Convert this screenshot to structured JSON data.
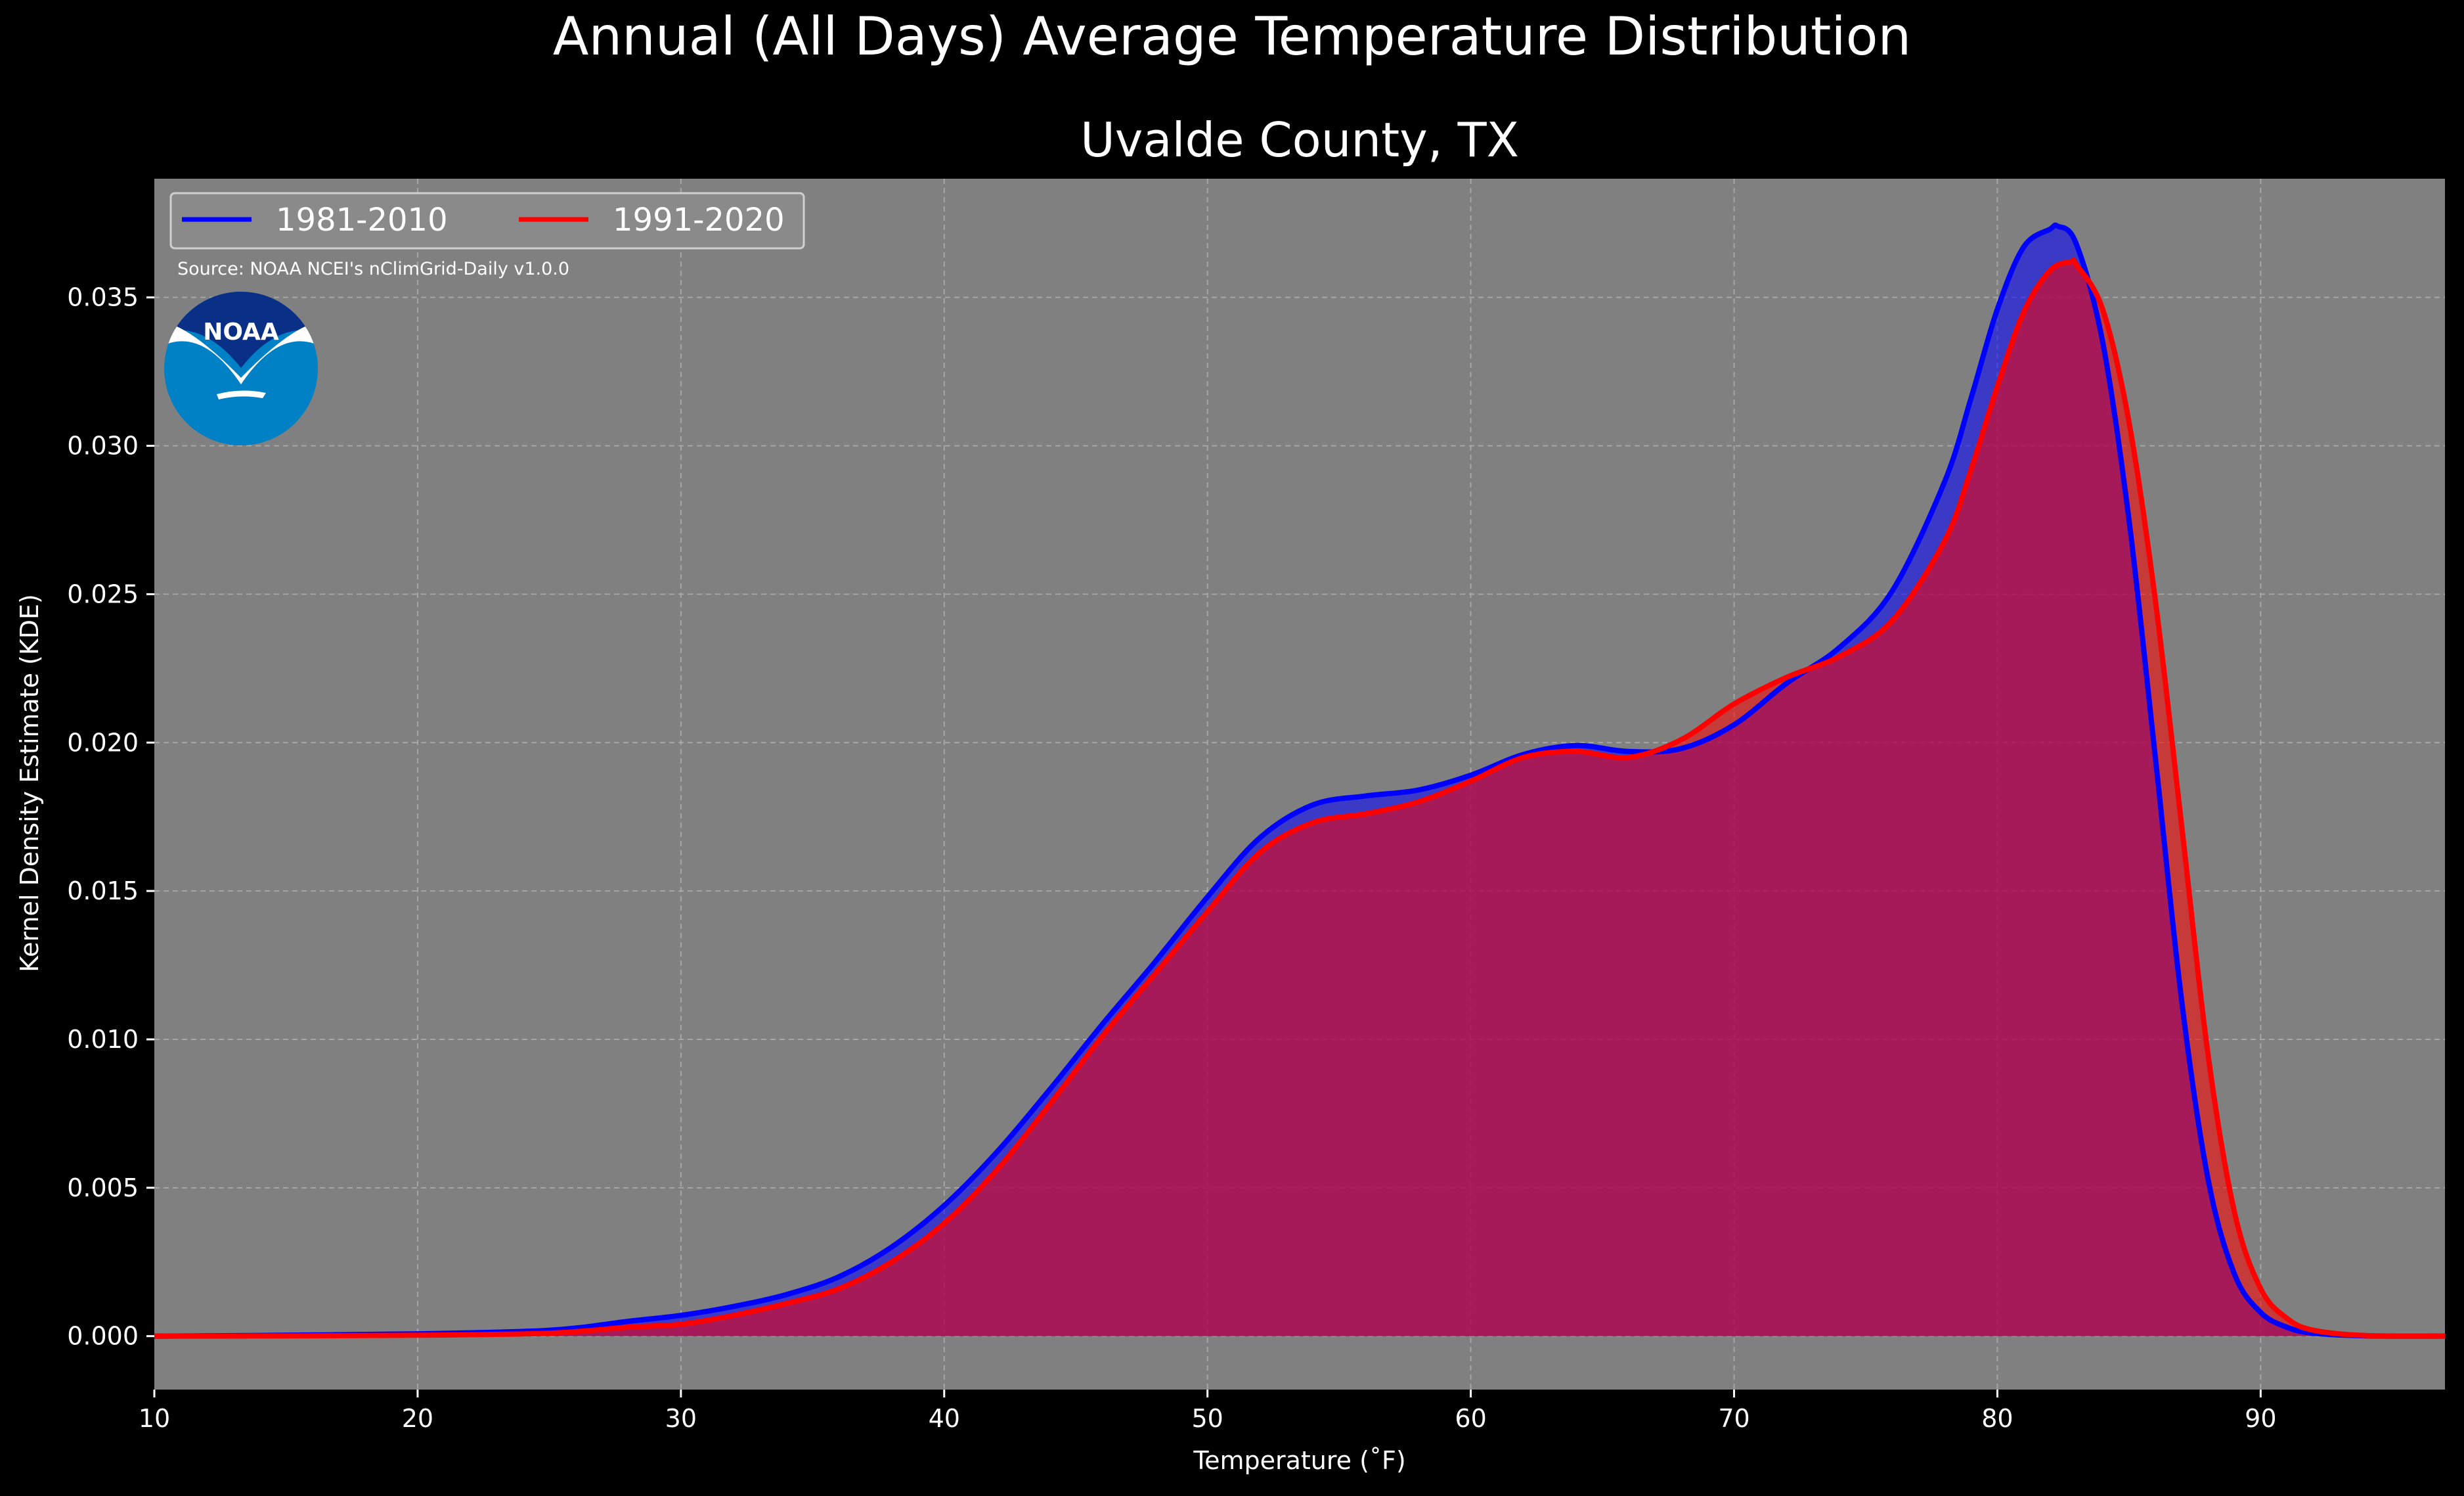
{
  "chart_data": {
    "type": "area",
    "suptitle": "Annual (All Days) Average Temperature Distribution",
    "title": "Uvalde County, TX",
    "xlabel": "Temperature ($^\\circ$F)",
    "xlabel_display": "Temperature (˚F)",
    "ylabel": "Kernel Density Estimate (KDE)",
    "xlim": [
      10,
      97
    ],
    "ylim": [
      -0.0018,
      0.039
    ],
    "xticks": [
      10,
      20,
      30,
      40,
      50,
      60,
      70,
      80,
      90
    ],
    "xtick_labels": [
      "10",
      "20",
      "30",
      "40",
      "50",
      "60",
      "70",
      "80",
      "90"
    ],
    "yticks": [
      0.0,
      0.005,
      0.01,
      0.015,
      0.02,
      0.025,
      0.03,
      0.035
    ],
    "ytick_labels": [
      "0.000",
      "0.005",
      "0.010",
      "0.015",
      "0.020",
      "0.025",
      "0.030",
      "0.035"
    ],
    "grid": true,
    "legend_position": "top-left",
    "source_note": "Source: NOAA NCEI's nClimGrid-Daily v1.0.0",
    "logo_text": "NOAA",
    "colors": {
      "figure_bg": "#000000",
      "axes_bg": "#808080",
      "grid": "#b0b0b0",
      "text": "#ffffff"
    },
    "series": [
      {
        "name": "1981-2010",
        "line_color": "#0000ff",
        "fill_color": "#3b3bc9",
        "x": [
          10,
          15,
          20,
          25,
          28,
          30,
          32,
          34,
          36,
          38,
          40,
          42,
          44,
          46,
          48,
          50,
          52,
          54,
          56,
          58,
          60,
          62,
          64,
          66,
          68,
          70,
          72,
          74,
          76,
          78,
          79,
          80,
          81,
          82,
          82.3,
          83,
          84,
          85,
          86,
          87,
          88,
          89,
          90,
          91,
          92,
          94,
          97
        ],
        "y": [
          0.0,
          3e-05,
          8e-05,
          0.0002,
          0.0005,
          0.0007,
          0.001,
          0.0014,
          0.002,
          0.003,
          0.0044,
          0.0062,
          0.0083,
          0.0105,
          0.0126,
          0.0148,
          0.0168,
          0.0179,
          0.0182,
          0.0184,
          0.0189,
          0.0196,
          0.0199,
          0.0197,
          0.0198,
          0.0206,
          0.022,
          0.0232,
          0.0251,
          0.0288,
          0.0316,
          0.0346,
          0.0367,
          0.0373,
          0.0374,
          0.0368,
          0.0335,
          0.0275,
          0.0195,
          0.0113,
          0.0053,
          0.0021,
          0.0008,
          0.0003,
          0.0001,
          1e-05,
          0.0
        ]
      },
      {
        "name": "1991-2020",
        "line_color": "#ff0000",
        "fill_color": "#a31c5b",
        "x": [
          10,
          15,
          20,
          25,
          28,
          30,
          32,
          34,
          36,
          38,
          40,
          42,
          44,
          46,
          48,
          50,
          52,
          54,
          56,
          58,
          60,
          62,
          64,
          66,
          68,
          70,
          72,
          74,
          76,
          78,
          79,
          80,
          81,
          82,
          82.8,
          83,
          84,
          85,
          86,
          87,
          88,
          89,
          90,
          91,
          92,
          94,
          97
        ],
        "y": [
          0.0,
          1e-05,
          3e-05,
          0.0001,
          0.0003,
          0.0004,
          0.0007,
          0.0011,
          0.0016,
          0.0025,
          0.0038,
          0.0056,
          0.0078,
          0.0101,
          0.0122,
          0.0143,
          0.0163,
          0.0173,
          0.0176,
          0.018,
          0.0187,
          0.0195,
          0.0197,
          0.0195,
          0.0201,
          0.0213,
          0.0222,
          0.0229,
          0.0241,
          0.0268,
          0.0292,
          0.032,
          0.0345,
          0.0359,
          0.0362,
          0.0361,
          0.0346,
          0.0308,
          0.0248,
          0.0172,
          0.0095,
          0.0042,
          0.0016,
          0.0006,
          0.0002,
          2e-05,
          0.0
        ]
      }
    ]
  }
}
